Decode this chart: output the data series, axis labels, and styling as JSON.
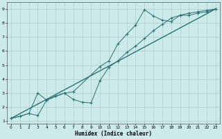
{
  "xlabel": "Humidex (Indice chaleur)",
  "bg_color": "#cceaea",
  "grid_color": "#aacccc",
  "line_color": "#2a7070",
  "xlim": [
    -0.5,
    23.5
  ],
  "ylim": [
    0.8,
    9.5
  ],
  "xticks": [
    0,
    1,
    2,
    3,
    4,
    5,
    6,
    7,
    8,
    9,
    10,
    11,
    12,
    13,
    14,
    15,
    16,
    17,
    18,
    19,
    20,
    21,
    22,
    23
  ],
  "yticks": [
    1,
    2,
    3,
    4,
    5,
    6,
    7,
    8,
    9
  ],
  "line1_x": [
    0,
    1,
    2,
    3,
    4,
    6,
    7,
    10,
    11,
    12,
    13,
    14,
    15,
    16,
    17,
    18,
    19,
    20,
    21,
    22,
    23
  ],
  "line1_y": [
    1.2,
    1.35,
    1.55,
    1.4,
    2.5,
    3.0,
    3.1,
    4.9,
    5.3,
    6.5,
    7.2,
    7.85,
    8.95,
    8.5,
    8.2,
    8.1,
    8.55,
    8.55,
    8.7,
    8.8,
    9.0
  ],
  "line2_x": [
    0,
    1,
    2,
    3,
    4,
    5,
    6,
    7,
    8,
    9,
    10,
    11,
    12,
    13,
    14,
    15,
    16,
    17,
    18,
    19,
    20,
    21,
    22,
    23
  ],
  "line2_y": [
    1.2,
    1.35,
    1.55,
    3.0,
    2.5,
    2.8,
    3.0,
    2.55,
    2.35,
    2.3,
    3.9,
    4.85,
    5.3,
    5.9,
    6.35,
    6.9,
    7.45,
    7.9,
    8.35,
    8.55,
    8.7,
    8.8,
    8.9,
    9.0
  ],
  "line3_x": [
    0,
    23
  ],
  "line3_y": [
    1.2,
    9.0
  ]
}
